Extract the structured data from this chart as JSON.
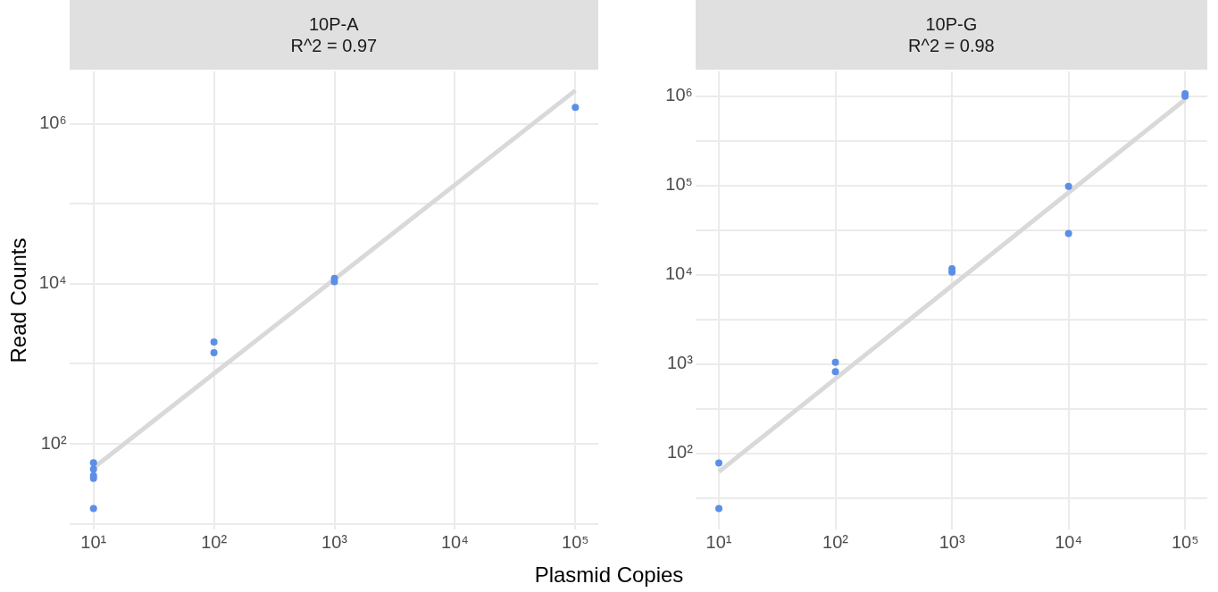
{
  "chart_data": [
    {
      "type": "scatter",
      "title": "10P-A",
      "subtitle": "R^2 = 0.97",
      "xlabel": "Plasmid Copies",
      "ylabel": "Read Counts",
      "log": "xy",
      "grid": true,
      "marker": "circle",
      "xlim": [
        6.3,
        155000
      ],
      "ylim": [
        8.5,
        4500000
      ],
      "xticks": [
        {
          "value": 10,
          "label": "10¹"
        },
        {
          "value": 100,
          "label": "10²"
        },
        {
          "value": 1000,
          "label": "10³"
        },
        {
          "value": 10000,
          "label": "10⁴"
        },
        {
          "value": 100000,
          "label": "10⁵"
        }
      ],
      "yticks": [
        {
          "value": 10,
          "label": null
        },
        {
          "value": 100,
          "label": "10²"
        },
        {
          "value": 1000,
          "label": null
        },
        {
          "value": 10000,
          "label": "10⁴"
        },
        {
          "value": 100000,
          "label": null
        },
        {
          "value": 1000000,
          "label": "10⁶"
        }
      ],
      "series": [
        {
          "type": "line",
          "color": "#d9d9d9",
          "line_style": "solid",
          "marker": "none",
          "x": [
            10,
            100000
          ],
          "values": [
            50,
            2600000
          ]
        },
        {
          "color": "#5b8ee6",
          "x": [
            10,
            10,
            10,
            10,
            10,
            100,
            100,
            1000,
            1000,
            100000
          ],
          "values": [
            58,
            48,
            40,
            37,
            15.5,
            1875,
            1380,
            11700,
            10600,
            1600000
          ]
        }
      ]
    },
    {
      "type": "scatter",
      "title": "10P-G",
      "subtitle": "R^2 = 0.98",
      "log": "xy",
      "grid": true,
      "marker": "circle",
      "xlim": [
        6.3,
        155000
      ],
      "ylim": [
        14,
        1900000
      ],
      "xticks": [
        {
          "value": 10,
          "label": "10¹"
        },
        {
          "value": 100,
          "label": "10²"
        },
        {
          "value": 1000,
          "label": "10³"
        },
        {
          "value": 10000,
          "label": "10⁴"
        },
        {
          "value": 100000,
          "label": "10⁵"
        }
      ],
      "yticks": [
        {
          "value": 31.6,
          "label": null
        },
        {
          "value": 100,
          "label": "10²"
        },
        {
          "value": 316,
          "label": null
        },
        {
          "value": 1000,
          "label": "10³"
        },
        {
          "value": 3162,
          "label": null
        },
        {
          "value": 10000,
          "label": "10⁴"
        },
        {
          "value": 31623,
          "label": null
        },
        {
          "value": 100000,
          "label": "10⁵"
        },
        {
          "value": 316228,
          "label": null
        },
        {
          "value": 1000000,
          "label": "10⁶"
        }
      ],
      "series": [
        {
          "type": "line",
          "color": "#d9d9d9",
          "line_style": "solid",
          "marker": "none",
          "x": [
            10,
            100000
          ],
          "values": [
            62,
            920000
          ]
        },
        {
          "color": "#5b8ee6",
          "x": [
            10,
            10,
            100,
            100,
            1000,
            1000,
            10000,
            10000,
            100000,
            100000
          ],
          "values": [
            78,
            24,
            1045,
            820,
            11700,
            10700,
            98000,
            29000,
            1070000,
            1000000
          ]
        }
      ]
    }
  ]
}
